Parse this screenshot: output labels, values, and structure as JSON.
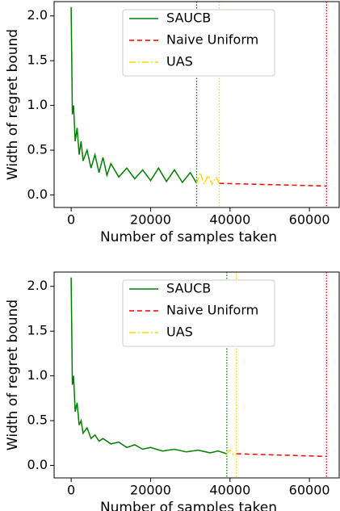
{
  "chart_data": [
    {
      "type": "line",
      "xlabel": "Number of samples taken",
      "ylabel": "Width of regret bound",
      "xlim": [
        -4300,
        67500
      ],
      "ylim": [
        -0.14,
        2.16
      ],
      "xticks": [
        0,
        20000,
        40000,
        60000
      ],
      "yticks": [
        {
          "value": 0,
          "label": "0.0"
        },
        {
          "value": 0.5,
          "label": "0.5"
        },
        {
          "value": 1,
          "label": "1.0"
        },
        {
          "value": 1.5,
          "label": "1.5"
        },
        {
          "value": 2,
          "label": "2.0"
        }
      ],
      "series": [
        {
          "name": "SAUCB",
          "color": "#008000",
          "style": "solid",
          "x": [
            0,
            300,
            600,
            1000,
            1500,
            2000,
            2500,
            3000,
            4000,
            5000,
            6000,
            7000,
            8000,
            9000,
            10000,
            12000,
            14000,
            16000,
            18000,
            20000,
            22000,
            24000,
            26000,
            28000,
            30000,
            31600
          ],
          "values": [
            2.1,
            0.9,
            1.0,
            0.6,
            0.75,
            0.45,
            0.6,
            0.38,
            0.5,
            0.3,
            0.45,
            0.25,
            0.42,
            0.22,
            0.35,
            0.2,
            0.3,
            0.18,
            0.28,
            0.16,
            0.3,
            0.15,
            0.28,
            0.14,
            0.25,
            0.13
          ]
        },
        {
          "name": "Naive Uniform",
          "color": "#ff0000",
          "style": "dashed",
          "x": [
            37300,
            64300
          ],
          "values": [
            0.13,
            0.1
          ]
        },
        {
          "name": "UAS",
          "color": "#ffd700",
          "style": "dashdot",
          "x": [
            31600,
            32500,
            33500,
            34500,
            35500,
            36500,
            37300
          ],
          "values": [
            0.13,
            0.25,
            0.12,
            0.22,
            0.12,
            0.2,
            0.13
          ]
        }
      ],
      "vlines": [
        {
          "x": 31600,
          "color": "#008000"
        },
        {
          "x": 37300,
          "color": "#ffd700"
        },
        {
          "x": 64300,
          "color": "#ff0000"
        }
      ]
    },
    {
      "type": "line",
      "xlabel": "Number of samples taken",
      "ylabel": "Width of regret bound",
      "xlim": [
        -4300,
        67500
      ],
      "ylim": [
        -0.14,
        2.16
      ],
      "xticks": [
        0,
        20000,
        40000,
        60000
      ],
      "yticks": [
        {
          "value": 0,
          "label": "0.0"
        },
        {
          "value": 0.5,
          "label": "0.5"
        },
        {
          "value": 1,
          "label": "1.0"
        },
        {
          "value": 1.5,
          "label": "1.5"
        },
        {
          "value": 2,
          "label": "2.0"
        }
      ],
      "series": [
        {
          "name": "SAUCB",
          "color": "#008000",
          "style": "solid",
          "x": [
            0,
            300,
            600,
            1000,
            1500,
            2000,
            2500,
            3000,
            4000,
            5000,
            6000,
            7000,
            8000,
            10000,
            12000,
            14000,
            16000,
            18000,
            20000,
            23000,
            26000,
            29000,
            32000,
            35000,
            37000,
            39200
          ],
          "values": [
            2.1,
            0.9,
            1.0,
            0.6,
            0.7,
            0.45,
            0.5,
            0.36,
            0.42,
            0.3,
            0.34,
            0.27,
            0.3,
            0.24,
            0.26,
            0.2,
            0.23,
            0.18,
            0.2,
            0.16,
            0.18,
            0.15,
            0.17,
            0.14,
            0.16,
            0.13
          ]
        },
        {
          "name": "Naive Uniform",
          "color": "#ff0000",
          "style": "dashed",
          "x": [
            41600,
            64300
          ],
          "values": [
            0.13,
            0.1
          ]
        },
        {
          "name": "UAS",
          "color": "#ffd700",
          "style": "dashdot",
          "x": [
            39200,
            40000,
            40800,
            41600
          ],
          "values": [
            0.13,
            0.17,
            0.12,
            0.13
          ]
        }
      ],
      "vlines": [
        {
          "x": 39200,
          "color": "#008000"
        },
        {
          "x": 41600,
          "color": "#ffd700"
        },
        {
          "x": 64300,
          "color": "#ff0000"
        }
      ]
    }
  ]
}
